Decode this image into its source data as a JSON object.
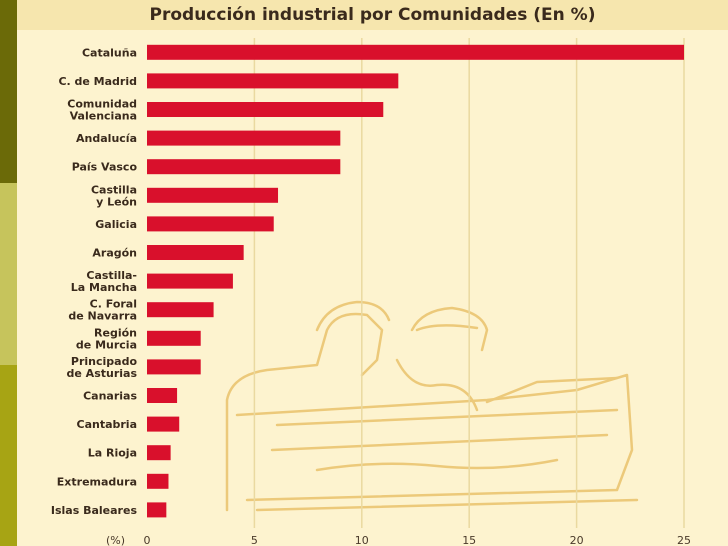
{
  "colors": {
    "bar": "#d9102c",
    "background": "#fdf3cf",
    "title_band": "#f6e6ae",
    "grid": "#ead9a0",
    "strip_dark": "#6b6a08",
    "strip_light": "#c6c45c",
    "strip_bright": "#a7a414"
  },
  "chart_data": {
    "type": "bar",
    "orientation": "horizontal",
    "title": "Producción industrial por Comunidades (En %)",
    "xlabel": "(%)",
    "ylabel": "",
    "xlim": [
      0,
      25
    ],
    "xticks": [
      0,
      5,
      10,
      15,
      20,
      25
    ],
    "grid": "vertical",
    "categories": [
      [
        "Cataluña"
      ],
      [
        "C. de Madrid"
      ],
      [
        "Comunidad",
        "Valenciana"
      ],
      [
        "Andalucía"
      ],
      [
        "País Vasco"
      ],
      [
        "Castilla",
        "y León"
      ],
      [
        "Galicia"
      ],
      [
        "Aragón"
      ],
      [
        "Castilla-",
        "La Mancha"
      ],
      [
        "C. Foral",
        "de Navarra"
      ],
      [
        "Región",
        "de Murcia"
      ],
      [
        "Principado",
        "de Asturias"
      ],
      [
        "Canarias"
      ],
      [
        "Cantabria"
      ],
      [
        "La Rioja"
      ],
      [
        "Extremadura"
      ],
      [
        "Islas Baleares"
      ]
    ],
    "values": [
      25.0,
      11.7,
      11.0,
      9.0,
      9.0,
      6.1,
      5.9,
      4.5,
      4.0,
      3.1,
      2.5,
      2.5,
      1.4,
      1.5,
      1.1,
      1.0,
      0.9
    ]
  }
}
